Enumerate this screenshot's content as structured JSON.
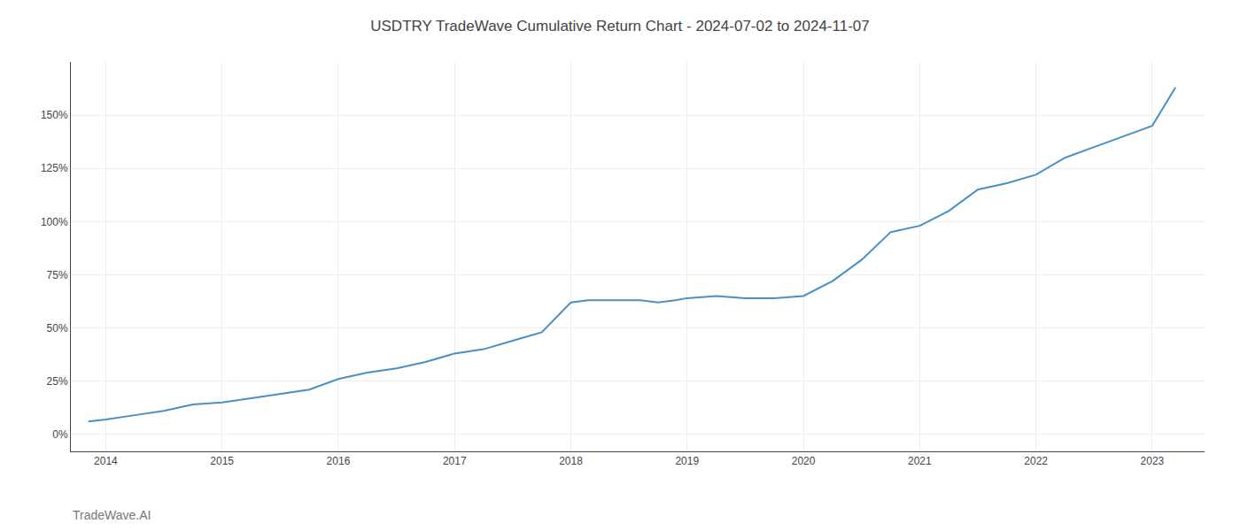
{
  "chart_data": {
    "type": "line",
    "title": "USDTRY TradeWave Cumulative Return Chart - 2024-07-02 to 2024-11-07",
    "x": [
      2013.85,
      2014.0,
      2014.25,
      2014.5,
      2014.75,
      2015.0,
      2015.25,
      2015.5,
      2015.75,
      2016.0,
      2016.25,
      2016.5,
      2016.75,
      2017.0,
      2017.25,
      2017.5,
      2017.75,
      2018.0,
      2018.15,
      2018.3,
      2018.45,
      2018.6,
      2018.75,
      2018.9,
      2019.0,
      2019.25,
      2019.5,
      2019.75,
      2020.0,
      2020.25,
      2020.5,
      2020.75,
      2021.0,
      2021.25,
      2021.5,
      2021.75,
      2022.0,
      2022.25,
      2022.5,
      2022.75,
      2023.0,
      2023.2
    ],
    "values": [
      6,
      7,
      9,
      11,
      14,
      15,
      17,
      19,
      21,
      26,
      29,
      31,
      34,
      38,
      40,
      44,
      48,
      62,
      63,
      63,
      63,
      63,
      62,
      63,
      64,
      65,
      64,
      64,
      65,
      72,
      82,
      95,
      98,
      105,
      115,
      118,
      122,
      130,
      135,
      140,
      145,
      163
    ],
    "color": "#4a90c4",
    "xlim": [
      2013.7,
      2023.45
    ],
    "ylim": [
      -8,
      175
    ],
    "xticks": [
      2014,
      2015,
      2016,
      2017,
      2018,
      2019,
      2020,
      2021,
      2022,
      2023
    ],
    "yticks": [
      {
        "value": 0,
        "label": "0%"
      },
      {
        "value": 25,
        "label": "25%"
      },
      {
        "value": 50,
        "label": "50%"
      },
      {
        "value": 75,
        "label": "75%"
      },
      {
        "value": 100,
        "label": "100%"
      },
      {
        "value": 125,
        "label": "125%"
      },
      {
        "value": 150,
        "label": "150%"
      }
    ],
    "grid": true,
    "annotations": [
      "TradeWave.AI"
    ]
  }
}
